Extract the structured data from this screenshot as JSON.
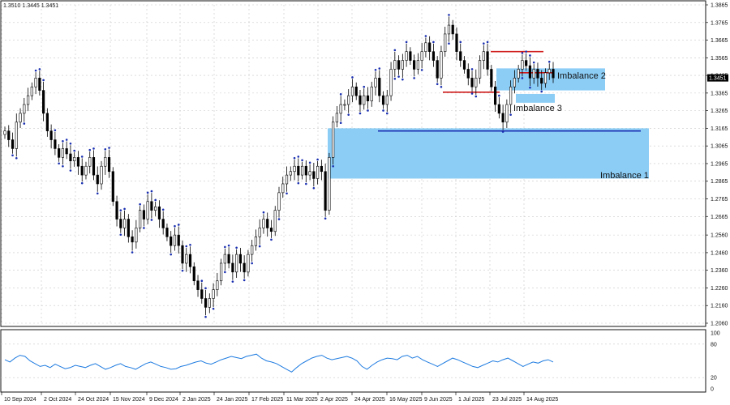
{
  "symbol_ohlc": "1.3510 1.3445 1.3451",
  "current_price_label": "1.3451",
  "chart_data": [
    {
      "type": "candlestick",
      "title": "",
      "ylim": [
        1.206,
        1.3865
      ],
      "grid": true,
      "y_ticks": [
        "1.3865",
        "1.3765",
        "1.3665",
        "1.3565",
        "1.3465",
        "1.3365",
        "1.3265",
        "1.3165",
        "1.3065",
        "1.2965",
        "1.2865",
        "1.2765",
        "1.2665",
        "1.2560",
        "1.2460",
        "1.2360",
        "1.2260",
        "1.2160",
        "1.2060"
      ],
      "x_ticks": [
        "10 Sep 2024",
        "2 Oct 2024",
        "24 Oct 2024",
        "15 Nov 2024",
        "9 Dec 2024",
        "2 Jan 2025",
        "24 Jan 2025",
        "17 Feb 2025",
        "11 Mar 2025",
        "2 Apr 2025",
        "24 Apr 2025",
        "16 May 2025",
        "9 Jun 2025",
        "1 Jul 2025",
        "23 Jul 2025",
        "14 Aug 2025"
      ],
      "closes": [
        1.315,
        1.31,
        1.305,
        1.32,
        1.325,
        1.33,
        1.335,
        1.34,
        1.345,
        1.338,
        1.325,
        1.315,
        1.31,
        1.305,
        1.3,
        1.305,
        1.302,
        1.298,
        1.3,
        1.295,
        1.29,
        1.295,
        1.3,
        1.29,
        1.285,
        1.295,
        1.3,
        1.292,
        1.275,
        1.265,
        1.26,
        1.265,
        1.255,
        1.252,
        1.26,
        1.27,
        1.265,
        1.275,
        1.27,
        1.272,
        1.265,
        1.26,
        1.255,
        1.25,
        1.256,
        1.25,
        1.24,
        1.245,
        1.238,
        1.23,
        1.225,
        1.22,
        1.215,
        1.22,
        1.225,
        1.23,
        1.24,
        1.245,
        1.24,
        1.235,
        1.245,
        1.24,
        1.235,
        1.245,
        1.25,
        1.255,
        1.26,
        1.265,
        1.26,
        1.258,
        1.27,
        1.28,
        1.285,
        1.29,
        1.292,
        1.295,
        1.29,
        1.295,
        1.29,
        1.292,
        1.288,
        1.295,
        1.292,
        1.27,
        1.3,
        1.32,
        1.325,
        1.33,
        1.33,
        1.335,
        1.34,
        1.335,
        1.33,
        1.335,
        1.332,
        1.34,
        1.345,
        1.335,
        1.33,
        1.335,
        1.35,
        1.355,
        1.35,
        1.355,
        1.36,
        1.355,
        1.35,
        1.355,
        1.36,
        1.365,
        1.36,
        1.355,
        1.345,
        1.36,
        1.37,
        1.375,
        1.37,
        1.36,
        1.355,
        1.35,
        1.345,
        1.34,
        1.345,
        1.355,
        1.36,
        1.35,
        1.34,
        1.33,
        1.325,
        1.32,
        1.33,
        1.34,
        1.345,
        1.35,
        1.355,
        1.352,
        1.345,
        1.35,
        1.345,
        1.342,
        1.348,
        1.35,
        1.3451
      ],
      "imbalance_zones": [
        {
          "name": "Imbalance 1",
          "price_top": 1.3165,
          "price_bottom": 1.288
        },
        {
          "name": "Imbalance 2",
          "price_top": 1.3505,
          "price_bottom": 1.338
        },
        {
          "name": "Imbalance 3",
          "price_top": 1.336,
          "price_bottom": 1.331
        }
      ],
      "horizontal_levels": [
        {
          "price": 1.315,
          "color": "#1a2fb0"
        },
        {
          "price": 1.36,
          "color": "#d01a1a"
        },
        {
          "price": 1.337,
          "color": "#d01a1a"
        },
        {
          "price": 1.348,
          "color": "#d01a1a"
        }
      ],
      "colors": {
        "zone": "#8ccdf6",
        "candle": "#000000",
        "support": "#1a2fb0",
        "resistance": "#d01a1a"
      }
    },
    {
      "type": "line",
      "title": "",
      "ylim": [
        0,
        100
      ],
      "y_ticks": [
        "100",
        "80",
        "20",
        "0"
      ],
      "values": [
        52,
        48,
        55,
        60,
        58,
        50,
        45,
        40,
        42,
        38,
        44,
        40,
        36,
        38,
        42,
        40,
        38,
        42,
        45,
        40,
        35,
        38,
        42,
        45,
        40,
        38,
        35,
        40,
        45,
        48,
        44,
        40,
        38,
        35,
        36,
        40,
        42,
        45,
        48,
        50,
        46,
        44,
        48,
        52,
        55,
        58,
        56,
        54,
        58,
        60,
        62,
        55,
        50,
        48,
        45,
        40,
        35,
        30,
        38,
        45,
        50,
        55,
        58,
        60,
        55,
        52,
        54,
        56,
        58,
        55,
        50,
        40,
        35,
        42,
        48,
        52,
        55,
        54,
        52,
        58,
        60,
        55,
        58,
        52,
        48,
        44,
        40,
        45,
        50,
        55,
        52,
        48,
        44,
        40,
        38,
        42,
        46,
        50,
        48,
        52,
        55,
        50,
        45,
        40,
        44,
        48,
        46,
        50,
        52,
        48
      ],
      "color": "#1e7be0"
    }
  ]
}
